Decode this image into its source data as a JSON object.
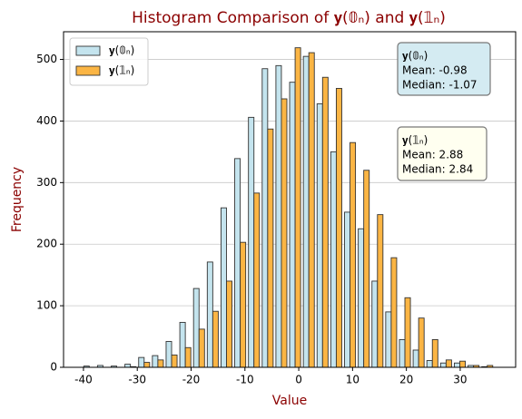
{
  "chart_data": {
    "type": "histogram",
    "title": "Histogram Comparison of 𝐲(𝟘ₙ) and 𝐲(𝟙ₙ)",
    "x_label": "Value",
    "y_label": "Frequency",
    "bins": [
      -40.2,
      -37.65,
      -35.1,
      -32.55,
      -30,
      -27.45,
      -24.9,
      -22.35,
      -19.8,
      -17.25,
      -14.7,
      -12.15,
      -9.6,
      -7.05,
      -4.5,
      -1.95,
      0.6,
      3.15,
      5.7,
      8.25,
      10.8,
      13.35,
      15.9,
      18.45,
      21,
      23.55,
      26.1,
      28.65,
      31.2,
      33.75,
      36.3
    ],
    "series": [
      {
        "name": "𝐲(𝟘ₙ)",
        "color": "#c4e4ee",
        "values": [
          2,
          3,
          2,
          5,
          16,
          19,
          42,
          73,
          128,
          171,
          259,
          339,
          406,
          485,
          490,
          463,
          505,
          428,
          350,
          252,
          225,
          140,
          90,
          45,
          28,
          11,
          7,
          7,
          3,
          1
        ]
      },
      {
        "name": "𝐲(𝟙ₙ)",
        "color": "#fbb544",
        "values": [
          0,
          0,
          0,
          1,
          8,
          12,
          20,
          32,
          62,
          91,
          140,
          203,
          283,
          387,
          436,
          519,
          511,
          471,
          453,
          365,
          320,
          248,
          178,
          113,
          80,
          45,
          12,
          10,
          3,
          3
        ]
      }
    ],
    "xlim": [
      -43.7,
      40.3
    ],
    "ylim": [
      0,
      545
    ],
    "xticks": [
      -40,
      -30,
      -20,
      -10,
      0,
      10,
      20,
      30
    ],
    "yticks": [
      0,
      100,
      200,
      300,
      400,
      500
    ],
    "grid": true,
    "legend": "upper left",
    "annotations": [
      {
        "lines": [
          "𝐲(𝟘ₙ)",
          "Mean: -0.98",
          "Median: -1.07"
        ],
        "color": "#d4ebf2"
      },
      {
        "lines": [
          "𝐲(𝟙ₙ)",
          "Mean: 2.88",
          "Median: 2.84"
        ],
        "color": "#fffff0"
      }
    ]
  }
}
